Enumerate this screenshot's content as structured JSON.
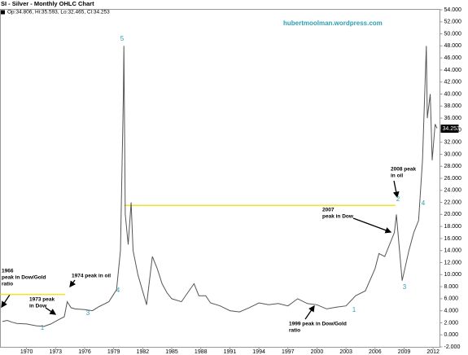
{
  "chart_data": {
    "type": "line",
    "title": "SI - Silver - Monthly OHLC Chart",
    "subtitle": "Op:34.806, Hi:35.593, Lo:32.465, Cl:34.253",
    "watermark": "hubertmoolman.wordpress.com",
    "xlim": [
      1967.3,
      2012.7
    ],
    "xticks": [
      1970,
      1973,
      1976,
      1979,
      1982,
      1985,
      1988,
      1991,
      1994,
      1997,
      2000,
      2003,
      2006,
      2009,
      2012
    ],
    "ylim": [
      -2,
      54
    ],
    "yticks": [
      {
        "value": -2,
        "label": "-2.000"
      },
      {
        "value": 0,
        "label": "0.000"
      },
      {
        "value": 2,
        "label": "2.000"
      },
      {
        "value": 4,
        "label": "4.000"
      },
      {
        "value": 6,
        "label": "6.000"
      },
      {
        "value": 8,
        "label": "8.000"
      },
      {
        "value": 10,
        "label": "10.000"
      },
      {
        "value": 12,
        "label": "12.000"
      },
      {
        "value": 14,
        "label": "14.000"
      },
      {
        "value": 16,
        "label": "16.000"
      },
      {
        "value": 18,
        "label": "18.000"
      },
      {
        "value": 20,
        "label": "20.000"
      },
      {
        "value": 22,
        "label": "22.000"
      },
      {
        "value": 24,
        "label": "24.000"
      },
      {
        "value": 26,
        "label": "26.000"
      },
      {
        "value": 28,
        "label": "28.000"
      },
      {
        "value": 30,
        "label": "30.000"
      },
      {
        "value": 32,
        "label": "32.000"
      },
      {
        "value": 34,
        "label": "34.000"
      },
      {
        "value": 36,
        "label": "36.000"
      },
      {
        "value": 38,
        "label": "38.000"
      },
      {
        "value": 40,
        "label": "40.000"
      },
      {
        "value": 42,
        "label": "42.000"
      },
      {
        "value": 44,
        "label": "44.000"
      },
      {
        "value": 46,
        "label": "46.000"
      },
      {
        "value": 48,
        "label": "48.000"
      },
      {
        "value": 50,
        "label": "50.000"
      },
      {
        "value": 52,
        "label": "52.000"
      },
      {
        "value": 54,
        "label": "54.000"
      }
    ],
    "last_price": {
      "value": 34.253,
      "label": "34.253"
    },
    "series": [
      {
        "name": "SI",
        "color": "#555555",
        "x": [
          1967.5,
          1968,
          1968.5,
          1969,
          1970,
          1971,
          1971.8,
          1972.5,
          1973.3,
          1973.9,
          1974.2,
          1974.6,
          1975,
          1976,
          1976.8,
          1977.5,
          1978.5,
          1979.3,
          1979.7,
          1980,
          1980.05,
          1980.2,
          1980.5,
          1980.8,
          1981,
          1981.5,
          1982.4,
          1983,
          1983.5,
          1984,
          1984.5,
          1985,
          1986,
          1987.3,
          1987.8,
          1988.5,
          1989,
          1990,
          1991,
          1992,
          1993,
          1994,
          1995,
          1996,
          1997,
          1998,
          1999,
          2000,
          2001,
          2002,
          2003,
          2004,
          2005,
          2006,
          2006.4,
          2007,
          2008,
          2008.2,
          2008.8,
          2009.5,
          2010,
          2010.5,
          2010.9,
          2011.3,
          2011.4,
          2011.7,
          2011.9,
          2012.2,
          2012.4
        ],
        "values": [
          2.2,
          2.4,
          2.1,
          1.9,
          1.8,
          1.5,
          1.4,
          1.8,
          2.5,
          3.0,
          5.5,
          4.5,
          4.3,
          4.2,
          4.0,
          4.7,
          5.5,
          7.5,
          14,
          40,
          48,
          20,
          15,
          22,
          14,
          10,
          5,
          13,
          11,
          8.5,
          7,
          6,
          5.5,
          8.5,
          6.5,
          6.5,
          5.3,
          4.8,
          4,
          3.8,
          4.5,
          5.3,
          5,
          5.2,
          4.8,
          6,
          5.2,
          5,
          4.3,
          4.6,
          4.8,
          6.5,
          7.3,
          11,
          13.5,
          13,
          17,
          20,
          9,
          14,
          17,
          19,
          29,
          48,
          36,
          40,
          29,
          35,
          34.3
        ]
      }
    ],
    "reference_lines": [
      {
        "color": "#f2e32a",
        "y": 6.7,
        "x": [
          1967.3,
          1974.0
        ]
      },
      {
        "color": "#f2e32a",
        "y": 21.5,
        "x": [
          1980.1,
          2008.1
        ]
      }
    ],
    "annotations": [
      {
        "lines": [
          "1966",
          "peak in Dow/Gold",
          "ratio"
        ]
      },
      {
        "lines": [
          "1973 peak",
          "in Dow"
        ]
      },
      {
        "lines": [
          "1974 peak in oil"
        ]
      },
      {
        "lines": [
          "2007",
          "peak in Dow"
        ]
      },
      {
        "lines": [
          "2008 peak",
          "in oil"
        ]
      },
      {
        "lines": [
          "1999 peak in Dow/Gold",
          "ratio"
        ]
      }
    ],
    "wave_labels": [
      "1",
      "3",
      "4",
      "5",
      "1",
      "2",
      "3",
      "4"
    ]
  }
}
